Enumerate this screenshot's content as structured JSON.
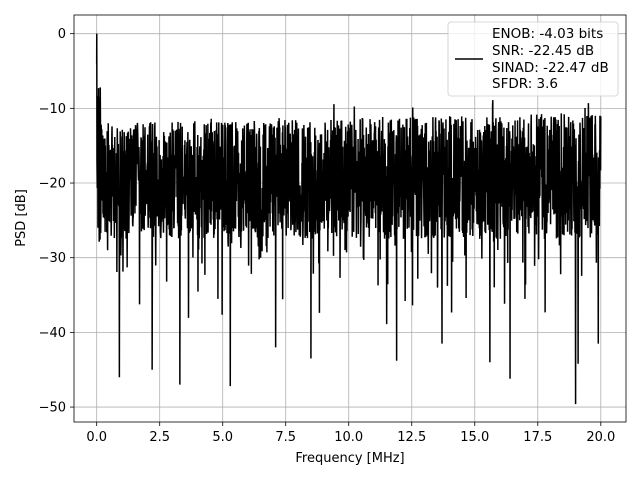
{
  "chart_data": {
    "type": "line",
    "xlabel": "Frequency [MHz]",
    "ylabel": "PSD [dB]",
    "xlim": [
      -0.9,
      21.0
    ],
    "ylim": [
      -52,
      2.5
    ],
    "xticks": [
      0.0,
      2.5,
      5.0,
      7.5,
      10.0,
      12.5,
      15.0,
      17.5,
      20.0
    ],
    "xtick_labels": [
      "0.0",
      "2.5",
      "5.0",
      "7.5",
      "10.0",
      "12.5",
      "15.0",
      "17.5",
      "20.0"
    ],
    "yticks": [
      0,
      -10,
      -20,
      -30,
      -40,
      -50
    ],
    "ytick_labels": [
      "0",
      "−10",
      "−20",
      "−30",
      "−40",
      "−50"
    ],
    "grid": true,
    "series": [
      {
        "color": "#000000",
        "x_range": [
          0.0,
          20.0
        ],
        "band_upper_db": -10.5,
        "band_lower_db": -27.5,
        "spike_peak": {
          "x": 0.0,
          "y": 0.0
        },
        "notable_dips": [
          {
            "x": 0.9,
            "y": -46.0
          },
          {
            "x": 2.2,
            "y": -45.0
          },
          {
            "x": 3.3,
            "y": -47.0
          },
          {
            "x": 5.3,
            "y": -47.2
          },
          {
            "x": 7.1,
            "y": -42.0
          },
          {
            "x": 8.5,
            "y": -43.5
          },
          {
            "x": 11.9,
            "y": -43.8
          },
          {
            "x": 13.7,
            "y": -41.5
          },
          {
            "x": 15.6,
            "y": -44.0
          },
          {
            "x": 16.4,
            "y": -46.2
          },
          {
            "x": 19.0,
            "y": -49.6
          },
          {
            "x": 19.1,
            "y": -44.2
          },
          {
            "x": 19.9,
            "y": -41.5
          }
        ]
      }
    ],
    "legend": {
      "placement": "top-right",
      "lines": [
        "ENOB: -4.03 bits",
        "SNR: -22.45 dB",
        "SINAD: -22.47 dB",
        "SFDR: 3.6"
      ]
    }
  }
}
